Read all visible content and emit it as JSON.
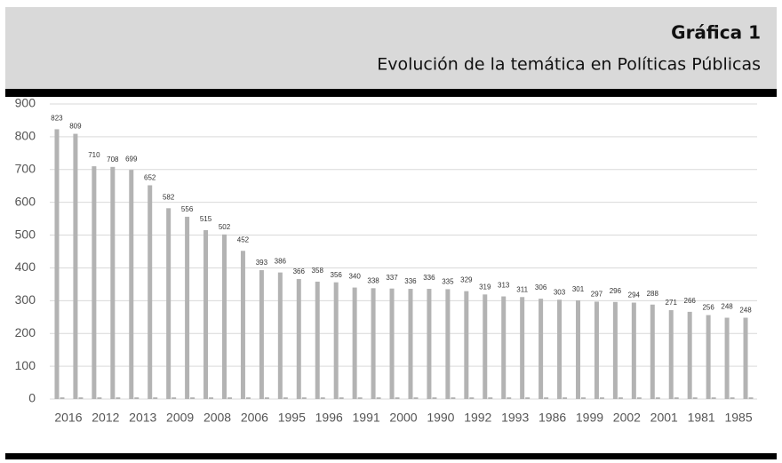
{
  "chart_data": {
    "type": "bar",
    "title": "Gráfica 1",
    "subtitle": "Evolución de la temática en Políticas Públicas",
    "categories": [
      "2016",
      null,
      "2012",
      null,
      "2013",
      null,
      "2009",
      null,
      "2008",
      null,
      "2006",
      null,
      "1995",
      null,
      "1996",
      null,
      "1991",
      null,
      "2000",
      null,
      "1990",
      null,
      "1992",
      null,
      "1993",
      null,
      "1986",
      null,
      "1999",
      null,
      "2002",
      null,
      "2001",
      null,
      "1981",
      null,
      "1985",
      null
    ],
    "series": [
      {
        "color": "#b3b3b3",
        "values": [
          823,
          809,
          710,
          708,
          699,
          652,
          582,
          556,
          515,
          502,
          452,
          393,
          386,
          366,
          358,
          356,
          340,
          338,
          337,
          336,
          336,
          335,
          329,
          319,
          313,
          311,
          306,
          303,
          301,
          297,
          296,
          294,
          288,
          271,
          266,
          256,
          248,
          248
        ]
      },
      {
        "color": "#b3b3b3",
        "values": [
          5,
          5,
          5,
          5,
          5,
          5,
          5,
          5,
          5,
          5,
          5,
          5,
          5,
          5,
          5,
          5,
          5,
          5,
          5,
          5,
          5,
          5,
          5,
          5,
          5,
          5,
          5,
          5,
          5,
          5,
          5,
          5,
          5,
          5,
          5,
          5,
          5,
          5
        ]
      }
    ],
    "ylim": [
      0,
      900
    ],
    "yticks": [
      0,
      100,
      200,
      300,
      400,
      500,
      600,
      700,
      800,
      900
    ],
    "grid": true
  }
}
